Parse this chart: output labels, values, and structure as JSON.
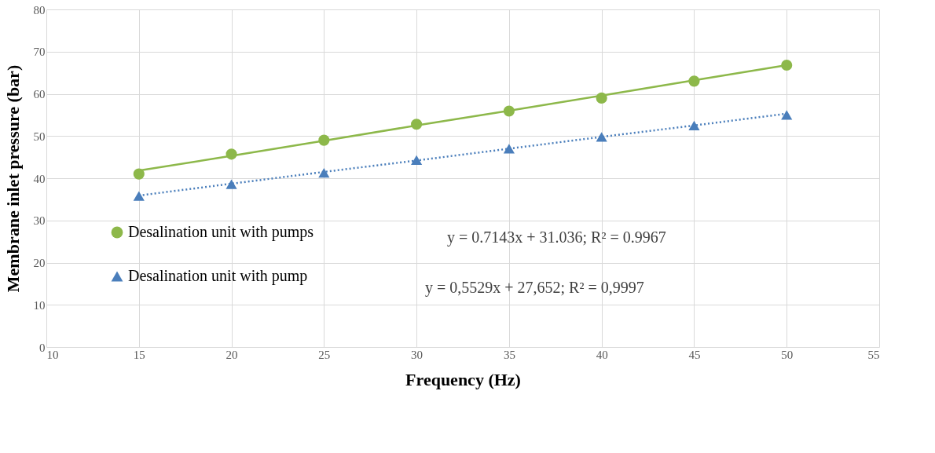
{
  "chart_data": {
    "type": "scatter",
    "xlabel": "Frequency (Hz)",
    "ylabel": "Membrane inlet pressure (bar)",
    "x": [
      15,
      20,
      25,
      30,
      35,
      40,
      45,
      50
    ],
    "series": [
      {
        "name": "Desalination unit with pumps",
        "color": "#8db84a",
        "marker": "circle",
        "values": [
          41,
          45.7,
          49,
          52.8,
          55.9,
          59,
          63,
          66.8
        ]
      },
      {
        "name": "Desalination unit with pump",
        "color": "#4a7ebb",
        "marker": "triangle",
        "values": [
          35.8,
          38.6,
          41.3,
          44.3,
          47,
          49.8,
          52.5,
          55
        ]
      },
      {
        "type": "line",
        "color": "#8db84a",
        "line_style": "solid",
        "values": [
          41.8,
          45.3,
          48.9,
          52.5,
          56.0,
          59.6,
          63.2,
          66.8
        ]
      },
      {
        "type": "line",
        "color": "#4a7ebb",
        "line_style": "dotted",
        "values": [
          35.9,
          38.7,
          41.5,
          44.2,
          47.0,
          49.8,
          52.5,
          55.3
        ]
      }
    ],
    "annotations": [
      "y = 0.7143x + 31.036;  R² = 0.9967",
      "y = 0,5529x + 27,652;  R² = 0,9997"
    ],
    "xlim": [
      10,
      55
    ],
    "xticks": [
      10,
      15,
      20,
      25,
      30,
      35,
      40,
      45,
      50,
      55
    ],
    "ylim": [
      0,
      80
    ],
    "yticks": [
      0,
      10,
      20,
      30,
      40,
      50,
      60,
      70,
      80
    ],
    "grid": true,
    "legend": "bottom left"
  }
}
